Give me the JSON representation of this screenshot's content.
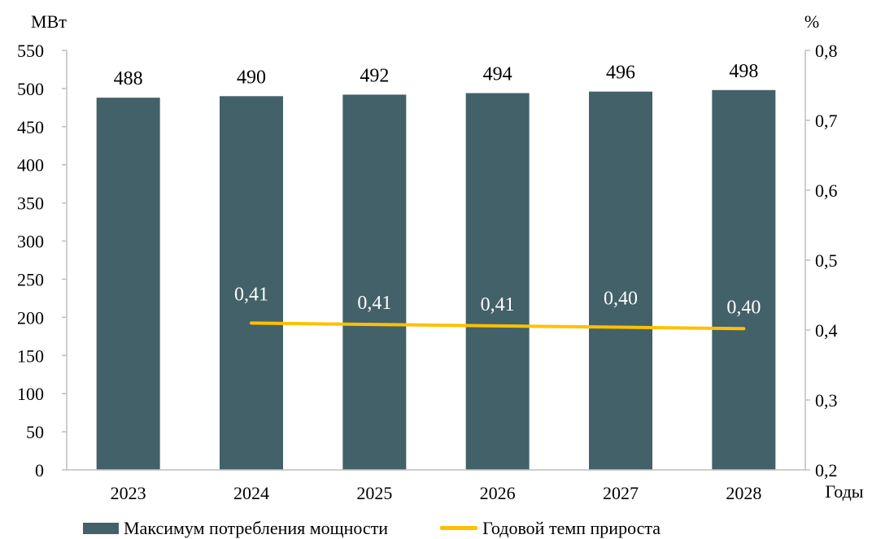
{
  "chart_data": {
    "type": "bar",
    "categories": [
      "2023",
      "2024",
      "2025",
      "2026",
      "2027",
      "2028"
    ],
    "series": [
      {
        "name": "Максимум потребления мощности",
        "type": "bar",
        "axis": "left",
        "values": [
          488,
          490,
          492,
          494,
          496,
          498
        ],
        "labels": [
          "488",
          "490",
          "492",
          "494",
          "496",
          "498"
        ],
        "color": "#436169"
      },
      {
        "name": "Годовой темп прироста",
        "type": "line",
        "axis": "right",
        "values": [
          null,
          0.41,
          0.408,
          0.406,
          0.404,
          0.402
        ],
        "labels": [
          "",
          "0,41",
          "0,41",
          "0,41",
          "0,40",
          "0,40"
        ],
        "color": "#FFC000"
      }
    ],
    "left_axis": {
      "unit_label": "МВт",
      "range": [
        0,
        550
      ],
      "ticks": [
        0,
        50,
        100,
        150,
        200,
        250,
        300,
        350,
        400,
        450,
        500,
        550
      ],
      "tick_labels": [
        "0",
        "50",
        "100",
        "150",
        "200",
        "250",
        "300",
        "350",
        "400",
        "450",
        "500",
        "550"
      ]
    },
    "right_axis": {
      "unit_label": "%",
      "range": [
        0.2,
        0.8
      ],
      "ticks": [
        0.2,
        0.3,
        0.4,
        0.5,
        0.6,
        0.7,
        0.8
      ],
      "tick_labels": [
        "0,2",
        "0,3",
        "0,4",
        "0,5",
        "0,6",
        "0,7",
        "0,8"
      ]
    },
    "xlabel": "Годы",
    "grid": false,
    "legend_position": "bottom"
  }
}
